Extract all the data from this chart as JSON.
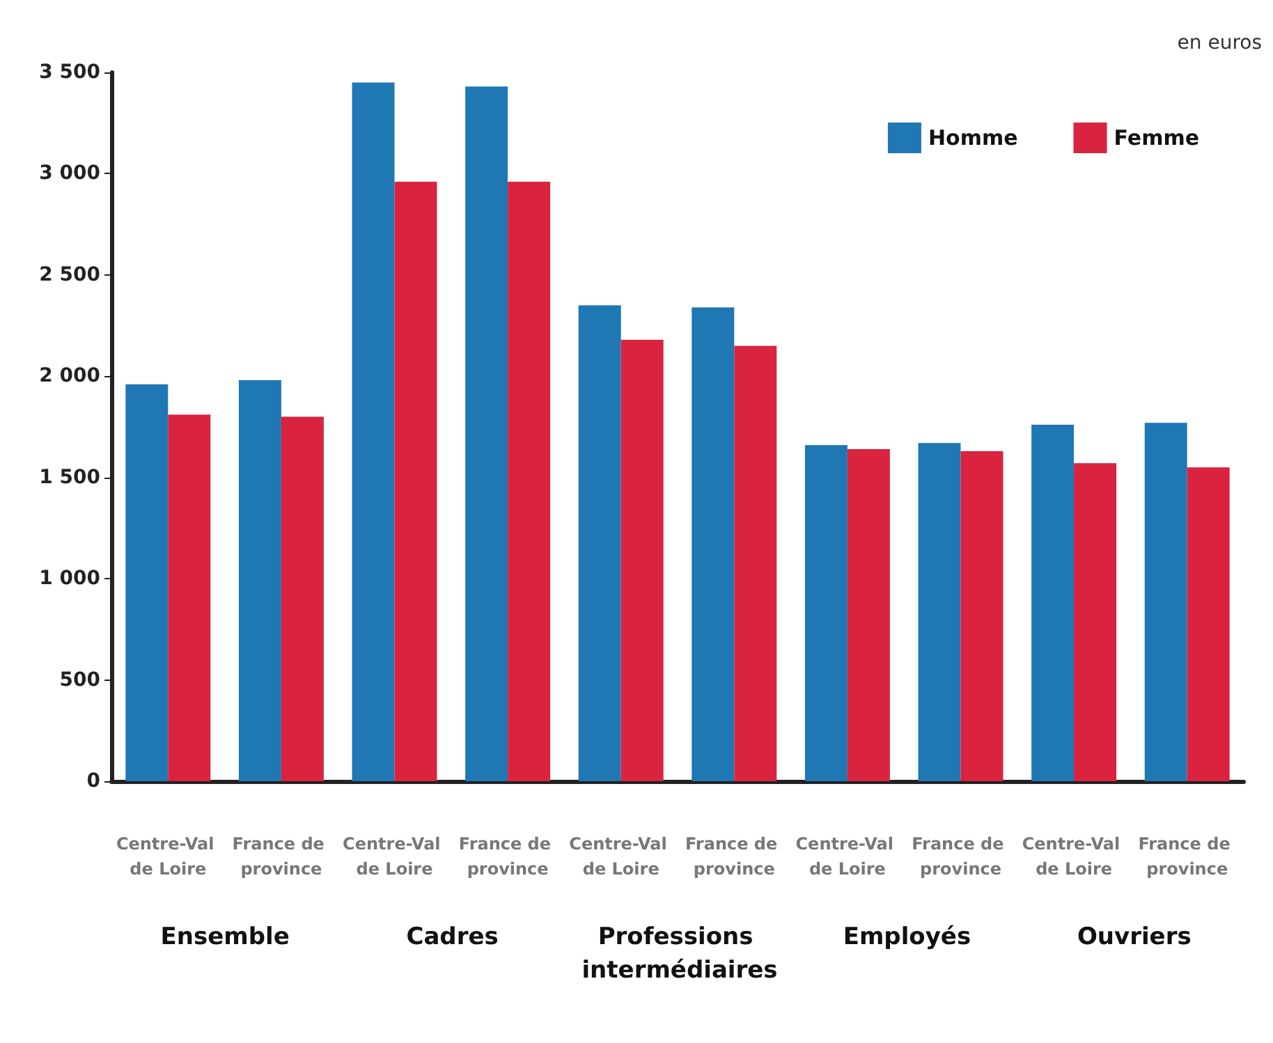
{
  "chart_data": {
    "type": "bar",
    "ylabel": "en euros",
    "categories": [
      "Centre-Val de Loire",
      "France de province",
      "Centre-Val de Loire",
      "France de province",
      "Centre-Val de Loire",
      "France de province",
      "Centre-Val de Loire",
      "France de province",
      "Centre-Val de Loire",
      "France de province"
    ],
    "series": [
      {
        "name": "Homme",
        "color": "#1f77b4",
        "values": [
          1960,
          1980,
          3450,
          3430,
          2350,
          2340,
          1660,
          1670,
          1760,
          1770
        ]
      },
      {
        "name": "Femme",
        "color": "#d9233f",
        "values": [
          1810,
          1800,
          2960,
          2960,
          2180,
          2150,
          1640,
          1630,
          1570,
          1550
        ]
      }
    ],
    "ylim": [
      0,
      3500
    ],
    "yticks": [
      {
        "value": 0,
        "label": "0"
      },
      {
        "value": 500,
        "label": "500"
      },
      {
        "value": 1000,
        "label": "1 000"
      },
      {
        "value": 1500,
        "label": "1 500"
      },
      {
        "value": 2000,
        "label": "2 000"
      },
      {
        "value": 2500,
        "label": "2 500"
      },
      {
        "value": 3000,
        "label": "3 000"
      },
      {
        "value": 3500,
        "label": "3 500"
      }
    ],
    "annotations": [
      "Ensemble",
      "Cadres",
      "Professions intermédiaires",
      "Employés",
      "Ouvriers"
    ],
    "grid": false,
    "legend": "top right"
  }
}
